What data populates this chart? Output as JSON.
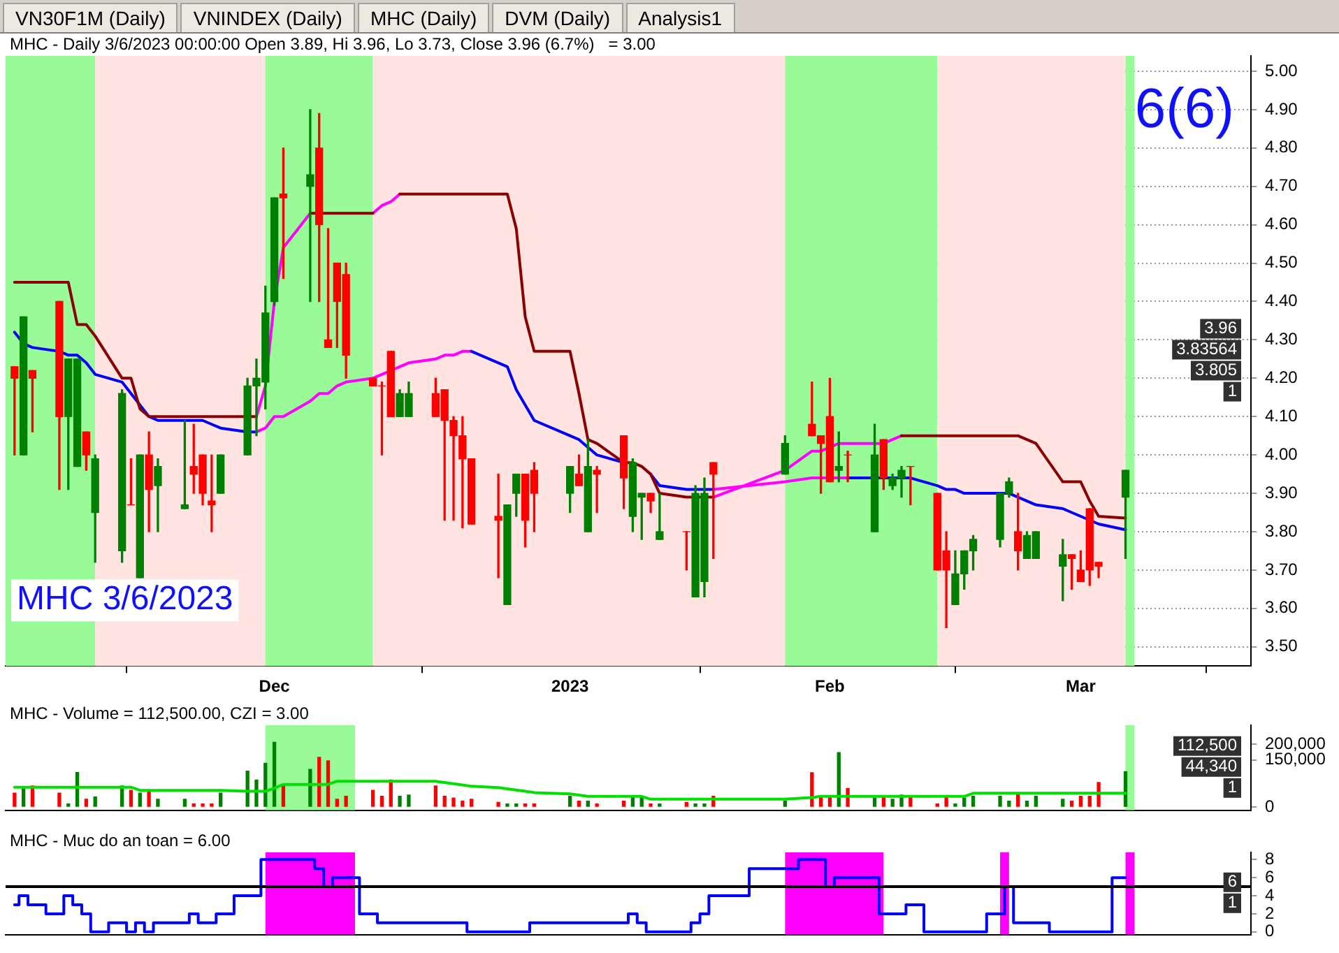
{
  "chart_data": [
    {
      "type": "other",
      "annotations": [
        "VN30F1M (Daily)",
        "VNINDEX (Daily)",
        "MHC (Daily)",
        "DVM (Daily)",
        "Analysis1"
      ]
    },
    {
      "type": "candlestick",
      "title": "MHC - Daily 3/6/2023 00:00:00 Open 3.89, Hi 3.96, Lo 3.73, Close 3.96 (6.7%)   = 3.00",
      "x": [
        "2022-11-02",
        "2022-11-03",
        "2022-11-04",
        "2022-11-07",
        "2022-11-08",
        "2022-11-09",
        "2022-11-10",
        "2022-11-11",
        "2022-11-14",
        "2022-11-15",
        "2022-11-16",
        "2022-11-17",
        "2022-11-18",
        "2022-11-21",
        "2022-11-22",
        "2022-11-23",
        "2022-11-24",
        "2022-11-25",
        "2022-11-28",
        "2022-11-29",
        "2022-11-30",
        "2022-12-01",
        "2022-12-02",
        "2022-12-05",
        "2022-12-06",
        "2022-12-07",
        "2022-12-08",
        "2022-12-09",
        "2022-12-12",
        "2022-12-13",
        "2022-12-14",
        "2022-12-15",
        "2022-12-16",
        "2022-12-19",
        "2022-12-20",
        "2022-12-21",
        "2022-12-22",
        "2022-12-23",
        "2022-12-26",
        "2022-12-27",
        "2022-12-28",
        "2022-12-29",
        "2022-12-30",
        "2023-01-03",
        "2023-01-04",
        "2023-01-05",
        "2023-01-06",
        "2023-01-09",
        "2023-01-10",
        "2023-01-11",
        "2023-01-12",
        "2023-01-13",
        "2023-01-16",
        "2023-01-17",
        "2023-01-18",
        "2023-01-19",
        "2023-01-27",
        "2023-01-30",
        "2023-01-31",
        "2023-02-01",
        "2023-02-02",
        "2023-02-03",
        "2023-02-06",
        "2023-02-07",
        "2023-02-08",
        "2023-02-09",
        "2023-02-10",
        "2023-02-13",
        "2023-02-14",
        "2023-02-15",
        "2023-02-16",
        "2023-02-17",
        "2023-02-20",
        "2023-02-21",
        "2023-02-22",
        "2023-02-23",
        "2023-02-24",
        "2023-02-27",
        "2023-02-28",
        "2023-03-01",
        "2023-03-02",
        "2023-03-03",
        "2023-03-06"
      ],
      "ohlc": [
        [
          4.23,
          4.23,
          4.0,
          4.2
        ],
        [
          4.0,
          4.36,
          4.0,
          4.36
        ],
        [
          4.22,
          4.22,
          4.06,
          4.2
        ],
        [
          4.4,
          4.4,
          3.91,
          4.1
        ],
        [
          4.1,
          4.25,
          3.91,
          4.25
        ],
        [
          3.97,
          4.25,
          3.97,
          4.25
        ],
        [
          4.06,
          4.06,
          3.96,
          4.0
        ],
        [
          3.85,
          4.0,
          3.72,
          3.99
        ],
        [
          3.75,
          4.17,
          3.72,
          4.16
        ],
        [
          3.87,
          3.99,
          3.87,
          3.87
        ],
        [
          3.68,
          4.0,
          3.68,
          4.0
        ],
        [
          4.0,
          4.06,
          3.8,
          3.91
        ],
        [
          3.92,
          3.99,
          3.8,
          3.97
        ],
        [
          3.86,
          4.09,
          3.86,
          3.87
        ],
        [
          3.97,
          4.08,
          3.9,
          3.95
        ],
        [
          4.0,
          4.0,
          3.87,
          3.9
        ],
        [
          3.88,
          4.0,
          3.8,
          3.87
        ],
        [
          3.9,
          4.0,
          3.9,
          4.0
        ],
        [
          4.0,
          4.2,
          4.0,
          4.18
        ],
        [
          4.18,
          4.25,
          4.05,
          4.2
        ],
        [
          4.19,
          4.44,
          4.12,
          4.37
        ],
        [
          4.4,
          4.67,
          4.39,
          4.67
        ],
        [
          4.68,
          4.8,
          4.46,
          4.67
        ],
        [
          4.7,
          4.9,
          4.4,
          4.73
        ],
        [
          4.8,
          4.89,
          4.4,
          4.6
        ],
        [
          4.3,
          4.59,
          4.28,
          4.28
        ],
        [
          4.5,
          4.5,
          4.28,
          4.4
        ],
        [
          4.47,
          4.5,
          4.2,
          4.26
        ],
        [
          4.2,
          4.2,
          4.18,
          4.18
        ],
        [
          4.18,
          4.19,
          4.0,
          4.18
        ],
        [
          4.27,
          4.27,
          4.1,
          4.1
        ],
        [
          4.1,
          4.17,
          4.1,
          4.16
        ],
        [
          4.1,
          4.19,
          4.1,
          4.16
        ],
        [
          4.16,
          4.2,
          4.1,
          4.1
        ],
        [
          4.17,
          4.17,
          3.83,
          4.09
        ],
        [
          4.09,
          4.1,
          3.83,
          4.05
        ],
        [
          4.05,
          4.1,
          3.81,
          3.99
        ],
        [
          3.99,
          3.99,
          3.82,
          3.82
        ],
        [
          3.84,
          3.95,
          3.68,
          3.83
        ],
        [
          3.61,
          3.87,
          3.61,
          3.87
        ],
        [
          3.9,
          3.95,
          3.84,
          3.95
        ],
        [
          3.95,
          3.95,
          3.76,
          3.83
        ],
        [
          3.96,
          3.98,
          3.8,
          3.9
        ],
        [
          3.9,
          3.97,
          3.85,
          3.97
        ],
        [
          3.95,
          4.0,
          3.92,
          3.92
        ],
        [
          3.8,
          4.04,
          3.8,
          3.97
        ],
        [
          3.96,
          3.97,
          3.85,
          3.95
        ],
        [
          4.05,
          4.05,
          3.86,
          3.94
        ],
        [
          3.84,
          3.99,
          3.8,
          3.98
        ],
        [
          3.89,
          3.9,
          3.78,
          3.9
        ],
        [
          3.9,
          3.9,
          3.85,
          3.88
        ],
        [
          3.78,
          3.9,
          3.78,
          3.8
        ],
        [
          3.8,
          3.8,
          3.7,
          3.8
        ],
        [
          3.63,
          3.92,
          3.63,
          3.9
        ],
        [
          3.67,
          3.94,
          3.63,
          3.9
        ],
        [
          3.98,
          3.98,
          3.73,
          3.95
        ],
        [
          3.95,
          4.05,
          3.95,
          4.03
        ],
        [
          4.08,
          4.19,
          4.05,
          4.05
        ],
        [
          4.05,
          4.05,
          3.9,
          4.03
        ],
        [
          4.1,
          4.2,
          3.93,
          3.93
        ],
        [
          3.96,
          4.06,
          3.93,
          3.97
        ],
        [
          4.0,
          4.01,
          3.93,
          4.0
        ],
        [
          3.8,
          4.08,
          3.8,
          4.0
        ],
        [
          4.04,
          4.04,
          3.91,
          3.94
        ],
        [
          3.92,
          3.95,
          3.91,
          3.94
        ],
        [
          3.94,
          3.97,
          3.89,
          3.96
        ],
        [
          3.97,
          3.97,
          3.87,
          3.97
        ],
        [
          3.9,
          3.9,
          3.7,
          3.7
        ],
        [
          3.75,
          3.8,
          3.55,
          3.7
        ],
        [
          3.61,
          3.75,
          3.61,
          3.69
        ],
        [
          3.69,
          3.75,
          3.65,
          3.75
        ],
        [
          3.75,
          3.79,
          3.7,
          3.78
        ],
        [
          3.78,
          3.9,
          3.76,
          3.9
        ],
        [
          3.9,
          3.94,
          3.89,
          3.93
        ],
        [
          3.8,
          3.9,
          3.7,
          3.75
        ],
        [
          3.73,
          3.8,
          3.73,
          3.79
        ],
        [
          3.73,
          3.8,
          3.73,
          3.8
        ],
        [
          3.71,
          3.78,
          3.62,
          3.74
        ],
        [
          3.74,
          3.74,
          3.65,
          3.73
        ],
        [
          3.7,
          3.75,
          3.67,
          3.67
        ],
        [
          3.86,
          3.86,
          3.66,
          3.7
        ],
        [
          3.72,
          3.72,
          3.68,
          3.71
        ],
        [
          3.89,
          3.96,
          3.73,
          3.96
        ]
      ],
      "colors": [
        "#ff0000",
        "#008000",
        "#ff0000",
        "#ff0000",
        "#008000",
        "#008000",
        "#ff0000",
        "#008000",
        "#008000",
        "#ff0000",
        "#008000",
        "#ff0000",
        "#008000",
        "#008000",
        "#ff0000",
        "#ff0000",
        "#ff0000",
        "#008000",
        "#008000",
        "#008000",
        "#008000",
        "#008000",
        "#ff0000",
        "#008000",
        "#ff0000",
        "#ff0000",
        "#ff0000",
        "#ff0000",
        "#ff0000",
        "#ff0000",
        "#ff0000",
        "#008000",
        "#008000",
        "#ff0000",
        "#ff0000",
        "#ff0000",
        "#ff0000",
        "#ff0000",
        "#ff0000",
        "#008000",
        "#008000",
        "#ff0000",
        "#ff0000",
        "#008000",
        "#ff0000",
        "#008000",
        "#ff0000",
        "#ff0000",
        "#008000",
        "#008000",
        "#ff0000",
        "#008000",
        "#ff0000",
        "#008000",
        "#008000",
        "#ff0000",
        "#008000",
        "#ff0000",
        "#ff0000",
        "#ff0000",
        "#008000",
        "#ff0000",
        "#008000",
        "#ff0000",
        "#008000",
        "#008000",
        "#ff0000",
        "#ff0000",
        "#ff0000",
        "#008000",
        "#008000",
        "#008000",
        "#008000",
        "#008000",
        "#ff0000",
        "#008000",
        "#008000",
        "#008000",
        "#ff0000",
        "#ff0000",
        "#ff0000",
        "#ff0000",
        "#008000"
      ],
      "series": [
        {
          "type": "line",
          "color": "#8b0000",
          "values": [
            4.45,
            4.45,
            4.45,
            4.45,
            4.45,
            4.34,
            4.34,
            4.31,
            4.2,
            4.2,
            4.12,
            4.1,
            4.1,
            4.1,
            4.1,
            4.1,
            4.1,
            4.1,
            4.1,
            4.1,
            null,
            null,
            null,
            4.63,
            4.63,
            4.63,
            4.63,
            4.63,
            4.63,
            null,
            null,
            4.68,
            4.68,
            4.68,
            4.68,
            4.68,
            4.68,
            4.68,
            4.68,
            4.68,
            4.59,
            4.36,
            4.27,
            4.27,
            4.16,
            4.04,
            4.03,
            3.98,
            3.98,
            3.97,
            3.95,
            3.9,
            3.89,
            3.89,
            3.89,
            3.89,
            null,
            null,
            null,
            null,
            null,
            null,
            null,
            null,
            null,
            4.05,
            4.05,
            4.05,
            4.05,
            4.05,
            4.05,
            4.05,
            4.05,
            4.05,
            4.05,
            4.04,
            4.03,
            3.93,
            3.93,
            3.93,
            3.88,
            3.84,
            3.83564
          ]
        },
        {
          "type": "line",
          "color": "#ff00ff",
          "values": [
            null,
            null,
            null,
            null,
            null,
            null,
            null,
            null,
            null,
            null,
            null,
            null,
            null,
            null,
            null,
            null,
            null,
            null,
            null,
            4.1,
            4.18,
            4.4,
            4.54,
            4.63,
            null,
            null,
            null,
            null,
            4.63,
            4.65,
            4.66,
            4.68,
            null,
            null,
            null,
            null,
            null,
            null,
            null,
            null,
            null,
            null,
            null,
            null,
            null,
            null,
            null,
            null,
            null,
            null,
            null,
            null,
            null,
            null,
            null,
            3.89,
            3.96,
            4.01,
            4.01,
            4.02,
            4.03,
            4.03,
            4.03,
            4.03,
            4.04,
            4.05,
            null,
            null,
            null,
            null,
            null,
            null,
            null,
            null,
            null,
            null,
            null,
            null,
            null,
            null,
            null,
            null,
            null
          ]
        },
        {
          "type": "line",
          "color": "#0000ff",
          "values": [
            4.32,
            4.29,
            4.28,
            4.27,
            4.26,
            4.26,
            4.24,
            4.21,
            4.19,
            4.16,
            4.13,
            4.1,
            4.09,
            4.09,
            4.09,
            4.09,
            4.08,
            4.07,
            4.06,
            4.06,
            null,
            null,
            null,
            null,
            null,
            null,
            null,
            null,
            null,
            null,
            null,
            null,
            null,
            null,
            null,
            null,
            null,
            4.27,
            4.24,
            4.23,
            4.17,
            4.13,
            4.09,
            4.05,
            4.04,
            4.02,
            4.0,
            3.98,
            null,
            null,
            3.95,
            3.92,
            3.91,
            3.91,
            3.91,
            3.91,
            null,
            null,
            null,
            null,
            null,
            3.94,
            3.94,
            3.94,
            3.94,
            3.94,
            3.94,
            3.92,
            3.91,
            3.91,
            3.9,
            3.9,
            3.9,
            3.9,
            3.89,
            3.88,
            3.87,
            3.86,
            3.85,
            3.84,
            3.83,
            3.82,
            3.805
          ]
        },
        {
          "type": "line",
          "color": "#ff00ff",
          "values": [
            null,
            null,
            null,
            null,
            null,
            null,
            null,
            null,
            null,
            null,
            null,
            null,
            null,
            null,
            null,
            null,
            null,
            null,
            null,
            4.06,
            4.07,
            4.1,
            4.1,
            4.14,
            4.16,
            4.16,
            4.18,
            4.19,
            4.2,
            4.21,
            4.22,
            4.23,
            4.24,
            4.25,
            4.26,
            4.26,
            4.27,
            4.27,
            null,
            null,
            null,
            null,
            null,
            null,
            null,
            null,
            null,
            null,
            null,
            null,
            null,
            null,
            null,
            null,
            null,
            3.91,
            3.93,
            3.94,
            3.94,
            3.94,
            3.94,
            3.94,
            null,
            null,
            null,
            null,
            null,
            null,
            null,
            null,
            null,
            null,
            null,
            null,
            null,
            null,
            null,
            null,
            null,
            null,
            null,
            null,
            null
          ]
        }
      ],
      "xlim": [
        "2022-11-01",
        "2023-03-20"
      ],
      "xticks": [
        {
          "value": "2022-12-01",
          "label": "Dec"
        },
        {
          "value": "2023-01-03",
          "label": "2023"
        },
        {
          "value": "2023-02-01",
          "label": "Feb"
        },
        {
          "value": "2023-03-01",
          "label": "Mar"
        }
      ],
      "ylim": [
        3.45,
        5.04
      ],
      "yticks": [
        {
          "value": 3.5,
          "label": "3.50"
        },
        {
          "value": 3.6,
          "label": "3.60"
        },
        {
          "value": 3.7,
          "label": "3.70"
        },
        {
          "value": 3.8,
          "label": "3.80"
        },
        {
          "value": 3.9,
          "label": "3.90"
        },
        {
          "value": 4.0,
          "label": "4.00"
        },
        {
          "value": 4.1,
          "label": "4.10"
        },
        {
          "value": 4.2,
          "label": "4.20"
        },
        {
          "value": 4.3,
          "label": "4.30"
        },
        {
          "value": 4.4,
          "label": "4.40"
        },
        {
          "value": 4.5,
          "label": "4.50"
        },
        {
          "value": 4.6,
          "label": "4.60"
        },
        {
          "value": 4.7,
          "label": "4.70"
        },
        {
          "value": 4.8,
          "label": "4.80"
        },
        {
          "value": 4.9,
          "label": "4.90"
        },
        {
          "value": 5.0,
          "label": "5.00"
        }
      ],
      "grid": "y",
      "bands": [
        {
          "axis": "x",
          "from": "2022-11-01",
          "to": "2022-11-11",
          "color": "#98fb98"
        },
        {
          "axis": "x",
          "from": "2022-11-11",
          "to": "2022-11-30",
          "color": "#ffe4e1"
        },
        {
          "axis": "x",
          "from": "2022-11-30",
          "to": "2022-12-12",
          "color": "#98fb98"
        },
        {
          "axis": "x",
          "from": "2022-12-12",
          "to": "2023-01-27",
          "color": "#ffe4e1"
        },
        {
          "axis": "x",
          "from": "2023-01-27",
          "to": "2023-02-13",
          "color": "#98fb98"
        },
        {
          "axis": "x",
          "from": "2023-02-13",
          "to": "2023-03-06",
          "color": "#ffe4e1"
        },
        {
          "axis": "x",
          "from": "2023-03-06",
          "to": "2023-03-07",
          "color": "#98fb98"
        }
      ],
      "annotations": [
        "MHC 3/6/2023",
        "6(6)",
        "3.96",
        "3.83564",
        "3.805",
        "1"
      ]
    },
    {
      "type": "bar",
      "title": "MHC - Volume = 112,500.00, CZI = 3.00",
      "x": [
        "2022-11-02",
        "2022-11-03",
        "2022-11-04",
        "2022-11-07",
        "2022-11-08",
        "2022-11-09",
        "2022-11-10",
        "2022-11-11",
        "2022-11-14",
        "2022-11-15",
        "2022-11-16",
        "2022-11-17",
        "2022-11-18",
        "2022-11-21",
        "2022-11-22",
        "2022-11-23",
        "2022-11-24",
        "2022-11-25",
        "2022-11-28",
        "2022-11-29",
        "2022-11-30",
        "2022-12-01",
        "2022-12-02",
        "2022-12-05",
        "2022-12-06",
        "2022-12-07",
        "2022-12-08",
        "2022-12-09",
        "2022-12-12",
        "2022-12-13",
        "2022-12-14",
        "2022-12-15",
        "2022-12-16",
        "2022-12-19",
        "2022-12-20",
        "2022-12-21",
        "2022-12-22",
        "2022-12-23",
        "2022-12-26",
        "2022-12-27",
        "2022-12-28",
        "2022-12-29",
        "2022-12-30",
        "2023-01-03",
        "2023-01-04",
        "2023-01-05",
        "2023-01-06",
        "2023-01-09",
        "2023-01-10",
        "2023-01-11",
        "2023-01-12",
        "2023-01-13",
        "2023-01-16",
        "2023-01-17",
        "2023-01-18",
        "2023-01-19",
        "2023-01-27",
        "2023-01-30",
        "2023-01-31",
        "2023-02-01",
        "2023-02-02",
        "2023-02-03",
        "2023-02-06",
        "2023-02-07",
        "2023-02-08",
        "2023-02-09",
        "2023-02-10",
        "2023-02-13",
        "2023-02-14",
        "2023-02-15",
        "2023-02-16",
        "2023-02-17",
        "2023-02-20",
        "2023-02-21",
        "2023-02-22",
        "2023-02-23",
        "2023-02-24",
        "2023-02-27",
        "2023-02-28",
        "2023-03-01",
        "2023-03-02",
        "2023-03-03",
        "2023-03-06"
      ],
      "series": [
        {
          "type": "bar",
          "values": [
            44000,
            63000,
            67000,
            44000,
            10000,
            110000,
            25000,
            32000,
            67000,
            53000,
            44000,
            48000,
            25000,
            25000,
            10000,
            10000,
            10000,
            44000,
            114000,
            86000,
            139000,
            206000,
            72000,
            120000,
            158000,
            147000,
            25000,
            34000,
            53000,
            34000,
            86000,
            34000,
            38000,
            67000,
            34000,
            29000,
            19000,
            25000,
            15000,
            10000,
            10000,
            10000,
            10000,
            34000,
            19000,
            19000,
            10000,
            19000,
            34000,
            34000,
            10000,
            10000,
            15000,
            10000,
            10000,
            34000,
            19000,
            109000,
            34000,
            30000,
            173000,
            59000,
            29000,
            34000,
            25000,
            38000,
            34000,
            10000,
            34000,
            10000,
            29000,
            34000,
            34000,
            19000,
            44000,
            19000,
            34000,
            25000,
            19000,
            34000,
            34000,
            78000,
            112500
          ],
          "colors": [
            "#ff0000",
            "#008000",
            "#ff0000",
            "#ff0000",
            "#008000",
            "#008000",
            "#ff0000",
            "#008000",
            "#008000",
            "#ff0000",
            "#008000",
            "#ff0000",
            "#008000",
            "#008000",
            "#ff0000",
            "#ff0000",
            "#ff0000",
            "#008000",
            "#008000",
            "#008000",
            "#008000",
            "#008000",
            "#ff0000",
            "#008000",
            "#ff0000",
            "#ff0000",
            "#ff0000",
            "#ff0000",
            "#ff0000",
            "#ff0000",
            "#ff0000",
            "#008000",
            "#008000",
            "#ff0000",
            "#ff0000",
            "#ff0000",
            "#ff0000",
            "#ff0000",
            "#ff0000",
            "#008000",
            "#008000",
            "#ff0000",
            "#ff0000",
            "#008000",
            "#ff0000",
            "#008000",
            "#ff0000",
            "#ff0000",
            "#008000",
            "#008000",
            "#ff0000",
            "#008000",
            "#ff0000",
            "#008000",
            "#008000",
            "#ff0000",
            "#008000",
            "#ff0000",
            "#ff0000",
            "#ff0000",
            "#008000",
            "#ff0000",
            "#008000",
            "#ff0000",
            "#008000",
            "#008000",
            "#ff0000",
            "#ff0000",
            "#ff0000",
            "#008000",
            "#008000",
            "#008000",
            "#008000",
            "#008000",
            "#ff0000",
            "#008000",
            "#008000",
            "#008000",
            "#ff0000",
            "#ff0000",
            "#ff0000",
            "#ff0000",
            "#008000"
          ]
        },
        {
          "type": "line",
          "color": "#00e000",
          "values": [
            63000,
            63000,
            63000,
            63000,
            63000,
            63000,
            63000,
            63000,
            63000,
            63000,
            53000,
            53000,
            53000,
            53000,
            53000,
            53000,
            53000,
            53000,
            50000,
            50000,
            50000,
            60000,
            72000,
            72000,
            72000,
            72000,
            82000,
            82000,
            82000,
            82000,
            82000,
            82000,
            82000,
            82000,
            78000,
            74000,
            70000,
            66000,
            62000,
            58000,
            54000,
            50000,
            46000,
            42000,
            38000,
            34000,
            34000,
            34000,
            34000,
            34000,
            25000,
            25000,
            25000,
            25000,
            25000,
            25000,
            25000,
            30000,
            34000,
            34000,
            34000,
            34000,
            34000,
            34000,
            34000,
            34000,
            34000,
            34000,
            34000,
            34000,
            34000,
            44000,
            44000,
            44000,
            44000,
            44000,
            44000,
            44000,
            44000,
            44000,
            44000,
            44000,
            44340
          ]
        }
      ],
      "xlim": [
        "2022-11-01",
        "2023-03-20"
      ],
      "ylim": [
        -10000,
        260000
      ],
      "yticks": [
        0,
        {
          "value": 150000,
          "label": "150,000"
        },
        {
          "value": 200000,
          "label": "200,000"
        }
      ],
      "tick_labels": "y",
      "bands": [
        {
          "axis": "x",
          "from": "2022-11-30",
          "to": "2022-12-10",
          "color": "#98fb98"
        },
        {
          "axis": "x",
          "from": "2023-03-06",
          "to": "2023-03-07",
          "color": "#98fb98"
        }
      ],
      "annotations": [
        "112,500",
        "44,340",
        "1"
      ]
    },
    {
      "type": "step",
      "title": "MHC - Muc do an toan = 6.00",
      "x": [
        "2022-11-02",
        "2022-11-03",
        "2022-11-04",
        "2022-11-07",
        "2022-11-08",
        "2022-11-09",
        "2022-11-10",
        "2022-11-11",
        "2022-11-14",
        "2022-11-15",
        "2022-11-16",
        "2022-11-17",
        "2022-11-18",
        "2022-11-21",
        "2022-11-22",
        "2022-11-23",
        "2022-11-24",
        "2022-11-25",
        "2022-11-28",
        "2022-11-29",
        "2022-11-30",
        "2022-12-01",
        "2022-12-02",
        "2022-12-05",
        "2022-12-06",
        "2022-12-07",
        "2022-12-08",
        "2022-12-09",
        "2022-12-12",
        "2022-12-13",
        "2022-12-14",
        "2022-12-15",
        "2022-12-16",
        "2022-12-19",
        "2022-12-20",
        "2022-12-21",
        "2022-12-22",
        "2022-12-23",
        "2022-12-26",
        "2022-12-27",
        "2022-12-28",
        "2022-12-29",
        "2022-12-30",
        "2023-01-03",
        "2023-01-04",
        "2023-01-05",
        "2023-01-06",
        "2023-01-09",
        "2023-01-10",
        "2023-01-11",
        "2023-01-12",
        "2023-01-13",
        "2023-01-16",
        "2023-01-17",
        "2023-01-18",
        "2023-01-19",
        "2023-01-27",
        "2023-01-30",
        "2023-01-31",
        "2023-02-01",
        "2023-02-02",
        "2023-02-03",
        "2023-02-06",
        "2023-02-07",
        "2023-02-08",
        "2023-02-09",
        "2023-02-10",
        "2023-02-13",
        "2023-02-14",
        "2023-02-15",
        "2023-02-16",
        "2023-02-17",
        "2023-02-20",
        "2023-02-21",
        "2023-02-22",
        "2023-02-23",
        "2023-02-24",
        "2023-02-27",
        "2023-02-28",
        "2023-03-01",
        "2023-03-02",
        "2023-03-03",
        "2023-03-06"
      ],
      "series": [
        {
          "color": "#0000ff",
          "values": [
            3,
            4,
            3,
            2,
            4,
            3,
            2,
            0,
            1,
            0,
            1,
            0,
            1,
            1,
            2,
            1,
            1,
            2,
            4,
            4,
            8,
            8,
            8,
            8,
            7,
            5,
            6,
            6,
            2,
            1,
            1,
            1,
            1,
            1,
            1,
            1,
            1,
            0,
            0,
            0,
            0,
            0,
            1,
            1,
            1,
            1,
            1,
            1,
            2,
            1,
            0,
            0,
            0,
            1,
            2,
            4,
            7,
            8,
            8,
            5,
            6,
            6,
            6,
            2,
            2,
            2,
            3,
            0,
            0,
            0,
            0,
            0,
            2,
            5,
            1,
            1,
            1,
            0,
            0,
            0,
            0,
            0,
            6
          ]
        }
      ],
      "xlim": [
        "2022-11-01",
        "2023-03-20"
      ],
      "ylim": [
        -0.3,
        8.8
      ],
      "yticks": [
        0,
        2,
        4,
        6,
        8
      ],
      "tick_labels": "y",
      "ref_lines": [
        {
          "axis": "y",
          "value": 5,
          "color": "#000000"
        }
      ],
      "bands": [
        {
          "axis": "x",
          "from": "2022-11-30",
          "to": "2022-12-10",
          "color": "#ff00ff"
        },
        {
          "axis": "x",
          "from": "2023-01-27",
          "to": "2023-02-07",
          "color": "#ff00ff"
        },
        {
          "axis": "x",
          "from": "2023-02-20",
          "to": "2023-02-21",
          "color": "#ff00ff"
        },
        {
          "axis": "x",
          "from": "2023-03-06",
          "to": "2023-03-07",
          "color": "#ff00ff"
        }
      ],
      "annotations": [
        "6",
        "1"
      ]
    }
  ]
}
